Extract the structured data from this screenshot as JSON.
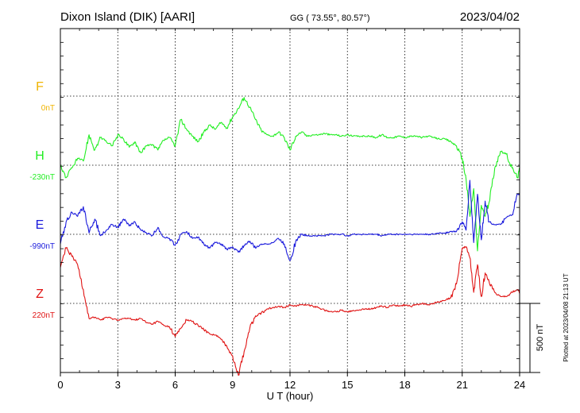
{
  "header": {
    "station": "Dixon Island (DIK)  [AARI]",
    "coords": "GG ( 73.55°,  80.57°)",
    "date": "2023/04/02"
  },
  "side_note": "Plotted at 2023/04/08 21:13 UT",
  "chart_data": {
    "type": "line",
    "title": "Dixon Island (DIK)  [AARI]",
    "xlabel": "U T (hour)",
    "xlim": [
      0,
      24
    ],
    "xticks": [
      "0",
      "3",
      "6",
      "9",
      "12",
      "15",
      "18",
      "21",
      "24"
    ],
    "grid": true,
    "scale_bar": {
      "label": "500 nT",
      "value": 500
    },
    "series": [
      {
        "name": "F",
        "baseline_label": "0nT",
        "color": "#f0b400",
        "x": [],
        "y": []
      },
      {
        "name": "H",
        "baseline_label": "-230nT",
        "color": "#22ee22",
        "x": [
          0,
          0.3,
          0.6,
          0.9,
          1.2,
          1.5,
          1.8,
          2.1,
          2.4,
          2.7,
          3.0,
          3.3,
          3.6,
          3.9,
          4.2,
          4.5,
          4.8,
          5.1,
          5.4,
          5.7,
          6.0,
          6.3,
          6.6,
          6.9,
          7.2,
          7.5,
          7.8,
          8.1,
          8.4,
          8.7,
          9.0,
          9.3,
          9.6,
          9.9,
          10.2,
          10.5,
          10.8,
          11.1,
          11.4,
          11.7,
          12.0,
          12.3,
          12.6,
          12.9,
          13.2,
          13.5,
          13.8,
          14.1,
          14.4,
          14.7,
          15.0,
          15.3,
          15.6,
          15.9,
          16.2,
          16.5,
          16.8,
          17.1,
          17.4,
          17.7,
          18.0,
          18.3,
          18.6,
          18.9,
          19.2,
          19.5,
          19.8,
          20.1,
          20.4,
          20.7,
          21.0,
          21.2,
          21.4,
          21.6,
          21.8,
          22.0,
          22.2,
          22.4,
          22.7,
          23.0,
          23.3,
          23.6,
          23.9,
          24.0
        ],
        "y": [
          -230,
          -320,
          -250,
          -180,
          -200,
          -10,
          -120,
          -30,
          -60,
          -90,
          -10,
          -40,
          -100,
          -60,
          -140,
          -90,
          -80,
          -120,
          -50,
          -30,
          -90,
          100,
          30,
          -20,
          -60,
          10,
          60,
          30,
          80,
          40,
          120,
          180,
          260,
          190,
          100,
          20,
          -10,
          -20,
          10,
          -30,
          -120,
          -20,
          10,
          -20,
          -10,
          -10,
          0,
          -10,
          -10,
          -20,
          -10,
          -20,
          -20,
          -20,
          -20,
          -30,
          -10,
          -30,
          -30,
          -20,
          -30,
          -20,
          -20,
          -30,
          -20,
          -30,
          -40,
          -40,
          -60,
          -90,
          -180,
          -330,
          -600,
          -400,
          -850,
          -520,
          -600,
          -500,
          -250,
          -130,
          -150,
          -250,
          -320,
          -250
        ]
      },
      {
        "name": "E",
        "baseline_label": "-990nT",
        "color": "#1a1adc",
        "x": [
          0,
          0.3,
          0.6,
          0.9,
          1.2,
          1.5,
          1.8,
          2.1,
          2.4,
          2.7,
          3.0,
          3.3,
          3.6,
          3.9,
          4.2,
          4.5,
          4.8,
          5.1,
          5.4,
          5.7,
          6.0,
          6.3,
          6.6,
          6.9,
          7.2,
          7.5,
          7.8,
          8.1,
          8.4,
          8.7,
          9.0,
          9.3,
          9.6,
          9.9,
          10.2,
          10.5,
          10.8,
          11.1,
          11.4,
          11.7,
          12.0,
          12.3,
          12.6,
          12.9,
          13.2,
          13.5,
          13.8,
          14.1,
          14.4,
          14.7,
          15.0,
          15.3,
          15.6,
          15.9,
          16.2,
          16.5,
          16.8,
          17.1,
          17.4,
          17.7,
          18.0,
          18.3,
          18.6,
          18.9,
          19.2,
          19.5,
          19.8,
          20.1,
          20.4,
          20.7,
          21.0,
          21.2,
          21.4,
          21.6,
          21.8,
          22.0,
          22.2,
          22.4,
          22.7,
          23.0,
          23.3,
          23.6,
          23.9,
          24.0
        ],
        "y": [
          -1060,
          -900,
          -830,
          -860,
          -790,
          -980,
          -880,
          -1000,
          -960,
          -920,
          -940,
          -880,
          -930,
          -900,
          -960,
          -980,
          -1000,
          -940,
          -1010,
          -1020,
          -1070,
          -990,
          -970,
          -1020,
          -1010,
          -1060,
          -1090,
          -1050,
          -1060,
          -1100,
          -1080,
          -1120,
          -1070,
          -1040,
          -1090,
          -1060,
          -1060,
          -1050,
          -1020,
          -1060,
          -1180,
          -1040,
          -990,
          -1000,
          -1000,
          -1000,
          -1000,
          -990,
          -990,
          -990,
          -1000,
          -990,
          -990,
          -990,
          -990,
          -990,
          -1000,
          -990,
          -990,
          -990,
          -990,
          -990,
          -990,
          -990,
          -990,
          -990,
          -980,
          -980,
          -970,
          -970,
          -900,
          -960,
          -600,
          -1050,
          -700,
          -1030,
          -750,
          -900,
          -920,
          -920,
          -870,
          -850,
          -700,
          -700
        ]
      },
      {
        "name": "Z",
        "baseline_label": "220nT",
        "color": "#e01414",
        "x": [
          0,
          0.3,
          0.6,
          0.9,
          1.2,
          1.5,
          1.8,
          2.1,
          2.4,
          2.7,
          3.0,
          3.3,
          3.6,
          3.9,
          4.2,
          4.5,
          4.8,
          5.1,
          5.4,
          5.7,
          6.0,
          6.3,
          6.6,
          6.9,
          7.2,
          7.5,
          7.8,
          8.1,
          8.4,
          8.7,
          9.0,
          9.3,
          9.6,
          9.9,
          10.2,
          10.5,
          10.8,
          11.1,
          11.4,
          11.7,
          12.0,
          12.3,
          12.6,
          12.9,
          13.2,
          13.5,
          13.8,
          14.1,
          14.4,
          14.7,
          15.0,
          15.3,
          15.6,
          15.9,
          16.2,
          16.5,
          16.8,
          17.1,
          17.4,
          17.7,
          18.0,
          18.3,
          18.6,
          18.9,
          19.2,
          19.5,
          19.8,
          20.1,
          20.4,
          20.7,
          21.0,
          21.2,
          21.4,
          21.6,
          21.8,
          22.0,
          22.2,
          22.4,
          22.7,
          23.0,
          23.3,
          23.6,
          23.9,
          24.0
        ],
        "y": [
          480,
          620,
          560,
          500,
          320,
          110,
          120,
          100,
          120,
          110,
          100,
          110,
          110,
          100,
          110,
          80,
          70,
          90,
          60,
          50,
          -20,
          40,
          100,
          90,
          60,
          30,
          0,
          -10,
          -40,
          -90,
          -160,
          -300,
          -130,
          40,
          130,
          150,
          180,
          190,
          200,
          190,
          210,
          200,
          210,
          210,
          200,
          190,
          170,
          160,
          160,
          170,
          160,
          170,
          170,
          180,
          180,
          190,
          200,
          190,
          210,
          200,
          210,
          200,
          210,
          220,
          210,
          220,
          230,
          240,
          260,
          360,
          620,
          630,
          550,
          300,
          500,
          270,
          440,
          380,
          300,
          270,
          270,
          300,
          320,
          300
        ]
      }
    ]
  }
}
